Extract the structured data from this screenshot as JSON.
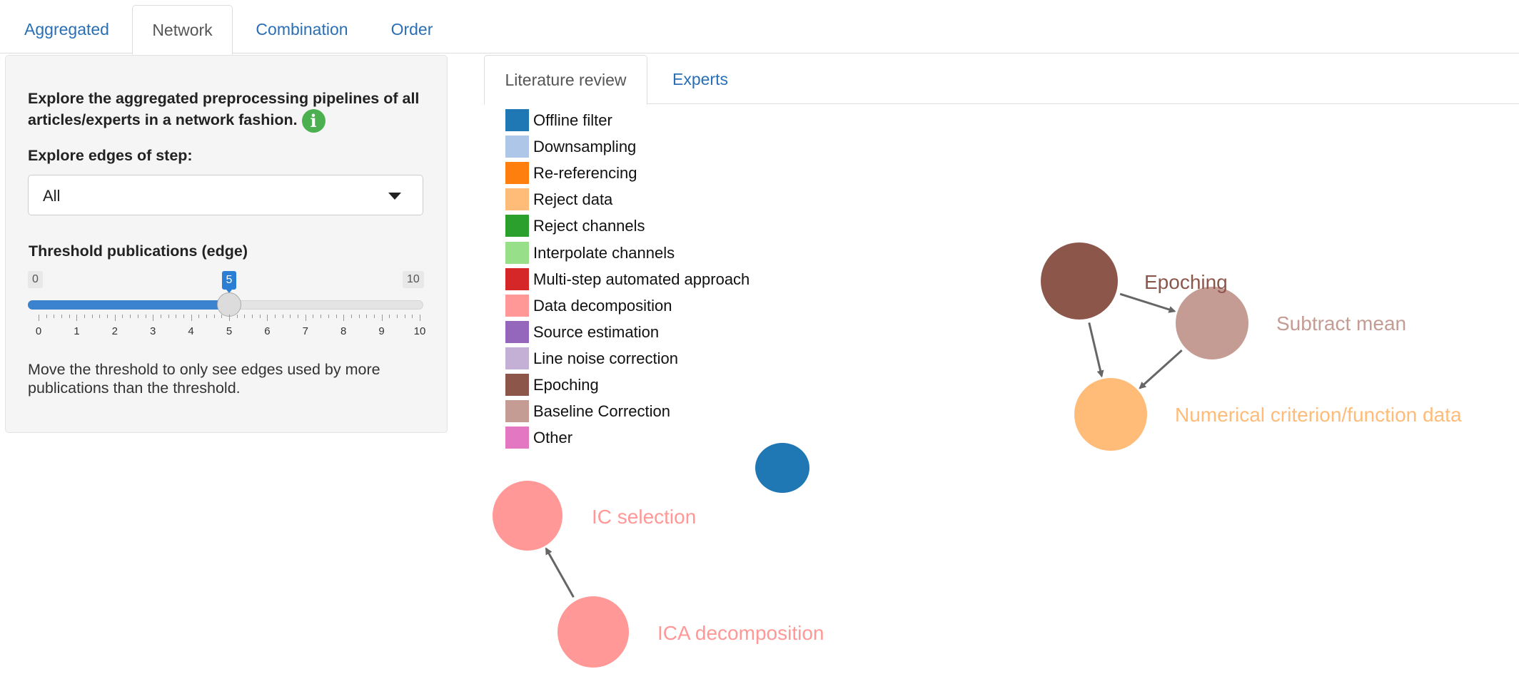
{
  "top_tabs": [
    {
      "label": "Aggregated",
      "active": false
    },
    {
      "label": "Network",
      "active": true
    },
    {
      "label": "Combination",
      "active": false
    },
    {
      "label": "Order",
      "active": false
    }
  ],
  "sidebar": {
    "intro_text": "Explore the aggregated preprocessing pipelines of all articles/experts in a network fashion.",
    "info_icon": "info-icon",
    "step_label": "Explore edges of step:",
    "step_select_value": "All",
    "threshold_label": "Threshold publications (edge)",
    "slider": {
      "min": 0,
      "max": 10,
      "value": 5,
      "min_label": "0",
      "max_label": "10",
      "value_label": "5",
      "ticks": [
        "0",
        "1",
        "2",
        "3",
        "4",
        "5",
        "6",
        "7",
        "8",
        "9",
        "10"
      ]
    },
    "help_text": "Move the threshold to only see edges used by more publications than the threshold."
  },
  "inner_tabs": [
    {
      "label": "Literature review",
      "active": true
    },
    {
      "label": "Experts",
      "active": false
    }
  ],
  "legend": [
    {
      "label": "Offline filter",
      "color": "#1f77b4"
    },
    {
      "label": "Downsampling",
      "color": "#aec7e8"
    },
    {
      "label": "Re-referencing",
      "color": "#ff7f0e"
    },
    {
      "label": "Reject data",
      "color": "#ffbb78"
    },
    {
      "label": "Reject channels",
      "color": "#2ca02c"
    },
    {
      "label": "Interpolate channels",
      "color": "#98df8a"
    },
    {
      "label": "Multi-step automated approach",
      "color": "#d62728"
    },
    {
      "label": "Data decomposition",
      "color": "#ff9896"
    },
    {
      "label": "Source estimation",
      "color": "#9467bd"
    },
    {
      "label": "Line noise correction",
      "color": "#c5b0d5"
    },
    {
      "label": "Epoching",
      "color": "#8c564b"
    },
    {
      "label": "Baseline Correction",
      "color": "#c49c94"
    },
    {
      "label": "Other",
      "color": "#e377c2"
    }
  ],
  "network": {
    "nodes": [
      {
        "id": "epoching",
        "label": "Epoching",
        "color": "#8c564b"
      },
      {
        "id": "subtract-mean",
        "label": "Subtract mean",
        "color": "#c49c94"
      },
      {
        "id": "numerical-criterion",
        "label": "Numerical criterion/function data",
        "color": "#ffbb78"
      },
      {
        "id": "offline-filter-node",
        "label": "",
        "color": "#1f77b4"
      },
      {
        "id": "ic-selection",
        "label": "IC selection",
        "color": "#ff9896"
      },
      {
        "id": "ica-decomposition",
        "label": "ICA decomposition",
        "color": "#ff9896"
      }
    ],
    "edges": [
      {
        "from": "epoching",
        "to": "subtract-mean"
      },
      {
        "from": "epoching",
        "to": "numerical-criterion"
      },
      {
        "from": "subtract-mean",
        "to": "numerical-criterion"
      },
      {
        "from": "ica-decomposition",
        "to": "ic-selection"
      }
    ],
    "edge_color": "#666666"
  }
}
